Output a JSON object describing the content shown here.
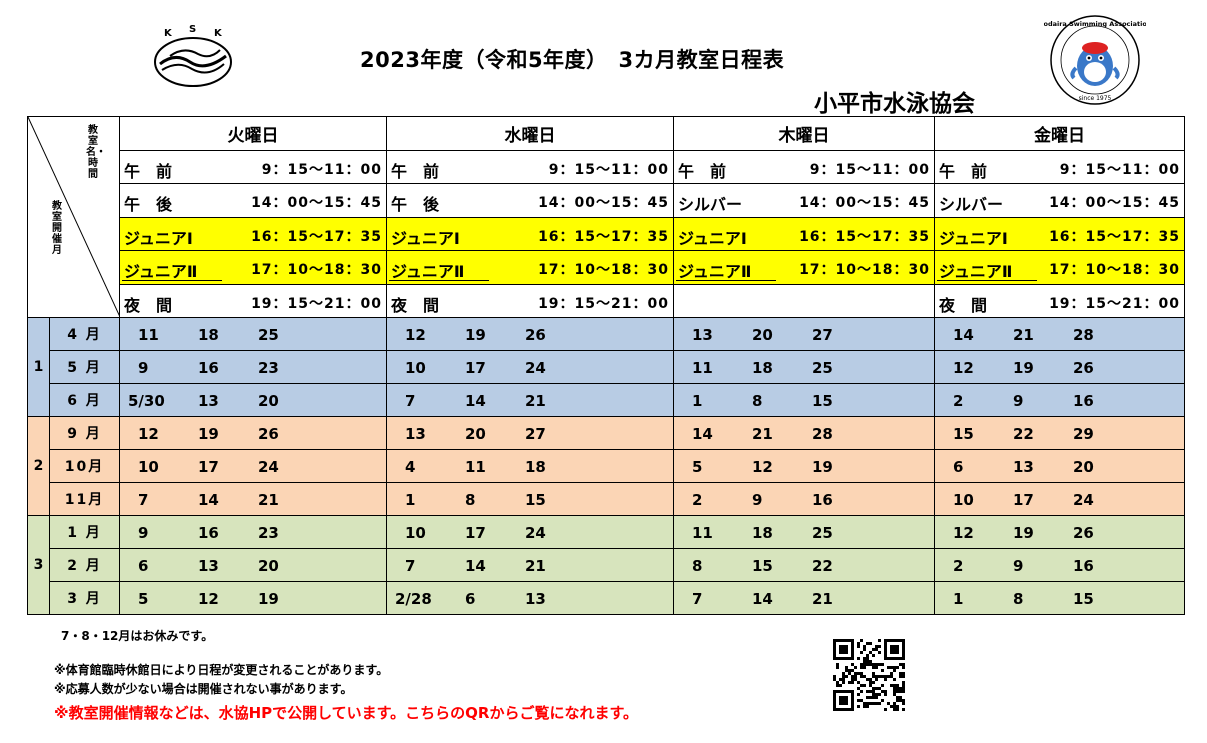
{
  "header": {
    "title": "2023年度（令和5年度）　3カ月教室日程表",
    "organization": "小平市水泳協会",
    "left_logo_text": "KSK",
    "right_logo_text": "Kodaira Swimming Association",
    "right_logo_since": "since 1975"
  },
  "corner": {
    "top_label": "教室名・時間",
    "bottom_label": "教室開催月"
  },
  "days": [
    {
      "name": "火曜日",
      "slots": [
        {
          "name": "午　前",
          "time": "9：15～11：00"
        },
        {
          "name": "午　後",
          "time": "14：00～15：45"
        },
        {
          "name": "ジュニアⅠ",
          "time": "16：15～17：35"
        },
        {
          "name": "ジュニアⅡ",
          "time": "17：10～18：30"
        },
        {
          "name": "夜　間",
          "time": "19：15～21：00"
        }
      ]
    },
    {
      "name": "水曜日",
      "slots": [
        {
          "name": "午　前",
          "time": "9：15～11：00"
        },
        {
          "name": "午　後",
          "time": "14：00～15：45"
        },
        {
          "name": "ジュニアⅠ",
          "time": "16：15～17：35"
        },
        {
          "name": "ジュニアⅡ",
          "time": "17：10～18：30"
        },
        {
          "name": "夜　間",
          "time": "19：15～21：00"
        }
      ]
    },
    {
      "name": "木曜日",
      "slots": [
        {
          "name": "午　前",
          "time": "9：15～11：00"
        },
        {
          "name": "シルバー",
          "time": "14：00～15：45"
        },
        {
          "name": "ジュニアⅠ",
          "time": "16：15～17：35"
        },
        {
          "name": "ジュニアⅡ",
          "time": "17：10～18：30"
        },
        {
          "name": "",
          "time": ""
        }
      ]
    },
    {
      "name": "金曜日",
      "slots": [
        {
          "name": "午　前",
          "time": "9：15～11：00"
        },
        {
          "name": "シルバー",
          "time": "14：00～15：45"
        },
        {
          "name": "ジュニアⅠ",
          "time": "16：15～17：35"
        },
        {
          "name": "ジュニアⅡ",
          "time": "17：10～18：30"
        },
        {
          "name": "夜　間",
          "time": "19：15～21：00"
        }
      ]
    }
  ],
  "quarters": [
    {
      "number": "1",
      "color": "#b8cce4",
      "months": [
        {
          "label": "4 月",
          "dates": [
            [
              "11",
              "18",
              "25"
            ],
            [
              "12",
              "19",
              "26"
            ],
            [
              "13",
              "20",
              "27"
            ],
            [
              "14",
              "21",
              "28"
            ]
          ]
        },
        {
          "label": "5 月",
          "dates": [
            [
              "9",
              "16",
              "23"
            ],
            [
              "10",
              "17",
              "24"
            ],
            [
              "11",
              "18",
              "25"
            ],
            [
              "12",
              "19",
              "26"
            ]
          ]
        },
        {
          "label": "6 月",
          "dates": [
            [
              "5/30",
              "13",
              "20"
            ],
            [
              "7",
              "14",
              "21"
            ],
            [
              "1",
              "8",
              "15"
            ],
            [
              "2",
              "9",
              "16"
            ]
          ]
        }
      ]
    },
    {
      "number": "2",
      "color": "#fbd5b5",
      "months": [
        {
          "label": "9 月",
          "dates": [
            [
              "12",
              "19",
              "26"
            ],
            [
              "13",
              "20",
              "27"
            ],
            [
              "14",
              "21",
              "28"
            ],
            [
              "15",
              "22",
              "29"
            ]
          ]
        },
        {
          "label": "10月",
          "dates": [
            [
              "10",
              "17",
              "24"
            ],
            [
              "4",
              "11",
              "18"
            ],
            [
              "5",
              "12",
              "19"
            ],
            [
              "6",
              "13",
              "20"
            ]
          ]
        },
        {
          "label": "11月",
          "dates": [
            [
              "7",
              "14",
              "21"
            ],
            [
              "1",
              "8",
              "15"
            ],
            [
              "2",
              "9",
              "16"
            ],
            [
              "10",
              "17",
              "24"
            ]
          ]
        }
      ]
    },
    {
      "number": "3",
      "color": "#d7e4bd",
      "months": [
        {
          "label": "1 月",
          "dates": [
            [
              "9",
              "16",
              "23"
            ],
            [
              "10",
              "17",
              "24"
            ],
            [
              "11",
              "18",
              "25"
            ],
            [
              "12",
              "19",
              "26"
            ]
          ]
        },
        {
          "label": "2 月",
          "dates": [
            [
              "6",
              "13",
              "20"
            ],
            [
              "7",
              "14",
              "21"
            ],
            [
              "8",
              "15",
              "22"
            ],
            [
              "2",
              "9",
              "16"
            ]
          ]
        },
        {
          "label": "3 月",
          "dates": [
            [
              "5",
              "12",
              "19"
            ],
            [
              "2/28",
              "6",
              "13"
            ],
            [
              "7",
              "14",
              "21"
            ],
            [
              "1",
              "8",
              "15"
            ]
          ]
        }
      ]
    }
  ],
  "notes": {
    "holiday": "7・8・12月はお休みです。",
    "note1": "※体育館臨時休館日により日程が変更されることがあります。",
    "note2": "※応募人数が少ない場合は開催されない事があります。",
    "note3": "※教室開催情報などは、水協HPで公開しています。こちらのQRからご覧になれます。"
  },
  "colors": {
    "junior_highlight": "#ffff00",
    "notice_red": "#ff0000"
  }
}
